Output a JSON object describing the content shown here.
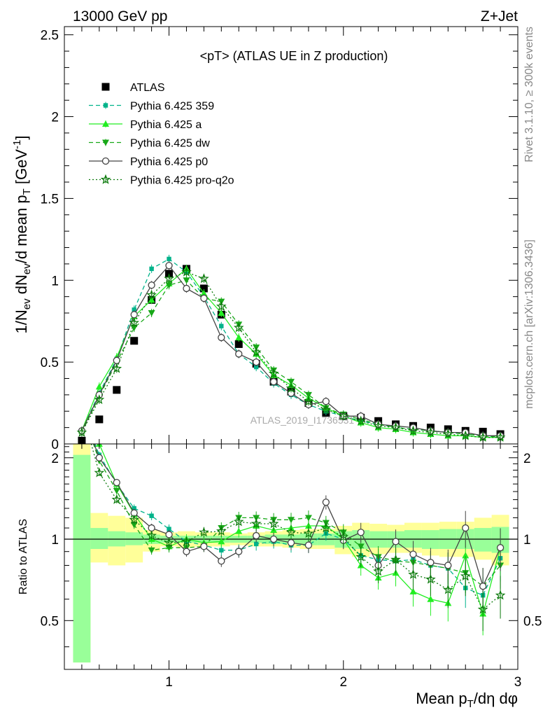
{
  "header": {
    "beam": "13000 GeV pp",
    "process": "Z+Jet",
    "plot_title": "<pT> (ATLAS UE in Z production)",
    "side_top": "Rivet 3.1.10, ≥ 300k events",
    "side_bottom": "mcplots.cern.ch [arXiv:1306.3436]",
    "watermark": "ATLAS_2019_I1736531"
  },
  "colors": {
    "atlas": "#000000",
    "p359": "#00b38a",
    "pa": "#22ee22",
    "pdw": "#18a818",
    "pp0": "#444444",
    "pq2o": "#0c7a0c",
    "band_yellow": "#ffff99",
    "band_green": "#99ff99"
  },
  "chart_data": [
    {
      "type": "scatter",
      "panel": "main",
      "ylabel": "1/N_ev dN_ev/d mean p_T [GeV^-1]",
      "xlim": [
        0.4,
        3.0
      ],
      "ylim": [
        0,
        2.55
      ],
      "yticks": [
        "0",
        "0.5",
        "1",
        "1.5",
        "2",
        "2.5"
      ],
      "ytick_values": [
        0,
        0.5,
        1,
        1.5,
        2,
        2.5
      ],
      "x": [
        0.5,
        0.6,
        0.7,
        0.8,
        0.9,
        1.0,
        1.1,
        1.2,
        1.3,
        1.4,
        1.5,
        1.6,
        1.7,
        1.8,
        1.9,
        2.0,
        2.1,
        2.2,
        2.3,
        2.4,
        2.5,
        2.6,
        2.7,
        2.8,
        2.9
      ],
      "series": [
        {
          "name": "ATLAS",
          "key": "atlas",
          "values": [
            0.02,
            0.15,
            0.33,
            0.63,
            0.88,
            1.04,
            1.07,
            0.95,
            0.79,
            0.61,
            0.49,
            0.38,
            0.32,
            0.25,
            0.19,
            0.17,
            0.16,
            0.14,
            0.12,
            0.11,
            0.1,
            0.09,
            0.08,
            0.075,
            0.06
          ]
        },
        {
          "name": "Pythia 6.425 359",
          "key": "p359",
          "values": [
            0.08,
            0.31,
            0.52,
            0.82,
            1.07,
            1.13,
            1.05,
            0.9,
            0.72,
            0.55,
            0.47,
            0.37,
            0.3,
            0.24,
            0.2,
            0.17,
            0.14,
            0.12,
            0.1,
            0.09,
            0.08,
            0.07,
            0.06,
            0.05,
            0.04
          ]
        },
        {
          "name": "Pythia 6.425 a",
          "key": "pa",
          "values": [
            0.08,
            0.35,
            0.53,
            0.78,
            0.88,
            0.98,
            1.07,
            0.92,
            0.8,
            0.65,
            0.55,
            0.42,
            0.36,
            0.28,
            0.22,
            0.17,
            0.13,
            0.1,
            0.09,
            0.07,
            0.06,
            0.05,
            0.05,
            0.04,
            0.04
          ]
        },
        {
          "name": "Pythia 6.425 dw",
          "key": "pdw",
          "values": [
            0.07,
            0.29,
            0.5,
            0.71,
            0.8,
            0.97,
            1.0,
            0.89,
            0.87,
            0.73,
            0.59,
            0.45,
            0.38,
            0.3,
            0.22,
            0.18,
            0.15,
            0.12,
            0.1,
            0.09,
            0.08,
            0.07,
            0.06,
            0.05,
            0.04
          ]
        },
        {
          "name": "Pythia 6.425 p0",
          "key": "pp0",
          "values": [
            0.08,
            0.3,
            0.51,
            0.79,
            0.97,
            1.09,
            0.95,
            0.89,
            0.65,
            0.55,
            0.5,
            0.38,
            0.31,
            0.24,
            0.26,
            0.17,
            0.17,
            0.12,
            0.11,
            0.1,
            0.08,
            0.07,
            0.07,
            0.05,
            0.05
          ]
        },
        {
          "name": "Pythia 6.425 pro-q2o",
          "key": "pq2o",
          "values": [
            0.07,
            0.27,
            0.46,
            0.74,
            0.91,
            1.01,
            1.05,
            1.01,
            0.84,
            0.71,
            0.56,
            0.43,
            0.34,
            0.26,
            0.21,
            0.17,
            0.14,
            0.11,
            0.1,
            0.08,
            0.07,
            0.06,
            0.05,
            0.04,
            0.04
          ]
        }
      ]
    },
    {
      "type": "line",
      "panel": "ratio",
      "xlabel": "Mean p_T/dη dφ",
      "ylabel": "Ratio to ATLAS",
      "xlim": [
        0.4,
        3.0
      ],
      "ylim": [
        0.33,
        2.25
      ],
      "xticks": [
        "1",
        "2",
        "3"
      ],
      "xtick_values": [
        1,
        2,
        3
      ],
      "yticks": [
        "0.5",
        "1",
        "2"
      ],
      "ytick_values": [
        0.5,
        1,
        2
      ],
      "reference": 1,
      "bands": {
        "yellow": [
          [
            0.35,
            2.3
          ],
          [
            0.82,
            1.25
          ],
          [
            0.8,
            1.22
          ],
          [
            0.82,
            1.2
          ],
          [
            0.9,
            1.08
          ],
          [
            0.94,
            1.06
          ],
          [
            0.93,
            1.07
          ],
          [
            0.94,
            1.06
          ],
          [
            0.94,
            1.06
          ],
          [
            0.95,
            1.05
          ],
          [
            0.94,
            1.06
          ],
          [
            0.94,
            1.07
          ],
          [
            0.93,
            1.08
          ],
          [
            0.92,
            1.09
          ],
          [
            0.92,
            1.09
          ],
          [
            0.88,
            1.12
          ],
          [
            0.86,
            1.15
          ],
          [
            0.88,
            1.14
          ],
          [
            0.89,
            1.13
          ],
          [
            0.89,
            1.15
          ],
          [
            0.87,
            1.15
          ],
          [
            0.86,
            1.16
          ],
          [
            0.86,
            1.16
          ],
          [
            0.84,
            1.2
          ],
          [
            0.8,
            1.23
          ]
        ],
        "green": [
          [
            0.35,
            2.05
          ],
          [
            0.92,
            1.1
          ],
          [
            0.94,
            1.07
          ],
          [
            0.95,
            1.06
          ],
          [
            0.96,
            1.04
          ],
          [
            0.97,
            1.03
          ],
          [
            0.97,
            1.03
          ],
          [
            0.97,
            1.03
          ],
          [
            0.97,
            1.03
          ],
          [
            0.97,
            1.03
          ],
          [
            0.97,
            1.03
          ],
          [
            0.96,
            1.04
          ],
          [
            0.96,
            1.04
          ],
          [
            0.95,
            1.05
          ],
          [
            0.95,
            1.05
          ],
          [
            0.93,
            1.07
          ],
          [
            0.92,
            1.08
          ],
          [
            0.93,
            1.07
          ],
          [
            0.93,
            1.07
          ],
          [
            0.93,
            1.08
          ],
          [
            0.92,
            1.08
          ],
          [
            0.92,
            1.09
          ],
          [
            0.92,
            1.09
          ],
          [
            0.9,
            1.1
          ],
          [
            0.89,
            1.11
          ]
        ]
      },
      "series": [
        {
          "name": "Pythia 6.425 359",
          "key": "p359",
          "values": [
            3.0,
            2.05,
            1.6,
            1.3,
            1.22,
            1.09,
            0.98,
            0.95,
            0.91,
            0.91,
            0.96,
            0.98,
            0.95,
            0.95,
            1.05,
            1.0,
            0.87,
            0.84,
            0.83,
            0.84,
            0.8,
            0.78,
            0.66,
            0.62,
            0.85
          ]
        },
        {
          "name": "Pythia 6.425 a",
          "key": "pa",
          "values": [
            3.0,
            2.25,
            1.6,
            1.24,
            1.0,
            0.94,
            1.0,
            0.97,
            0.98,
            1.07,
            1.12,
            1.08,
            1.1,
            1.12,
            1.12,
            1.0,
            0.8,
            0.72,
            0.75,
            0.64,
            0.6,
            0.58,
            0.87,
            0.53,
            0.93
          ]
        },
        {
          "name": "Pythia 6.425 dw",
          "key": "pdw",
          "values": [
            3.0,
            1.95,
            1.51,
            1.13,
            0.91,
            0.93,
            0.93,
            0.94,
            1.1,
            1.2,
            1.2,
            1.18,
            1.18,
            1.2,
            1.15,
            1.06,
            0.94,
            0.86,
            0.83,
            0.82,
            0.8,
            0.78,
            0.75,
            0.67,
            0.8
          ]
        },
        {
          "name": "Pythia 6.425 p0",
          "key": "pp0",
          "values": [
            3.0,
            2.0,
            1.62,
            1.25,
            1.1,
            1.04,
            0.9,
            0.94,
            0.83,
            0.9,
            1.03,
            1.0,
            0.97,
            0.95,
            1.37,
            0.99,
            1.06,
            0.8,
            0.98,
            0.88,
            0.82,
            0.8,
            1.1,
            0.67,
            0.93
          ]
        },
        {
          "name": "Pythia 6.425 pro-q2o",
          "key": "pq2o",
          "values": [
            3.0,
            1.76,
            1.4,
            1.18,
            1.03,
            0.97,
            0.98,
            1.06,
            1.07,
            1.16,
            1.14,
            1.14,
            1.06,
            1.05,
            1.1,
            1.02,
            0.86,
            0.76,
            0.84,
            0.74,
            0.71,
            0.65,
            0.73,
            0.55,
            0.62
          ]
        }
      ]
    }
  ]
}
